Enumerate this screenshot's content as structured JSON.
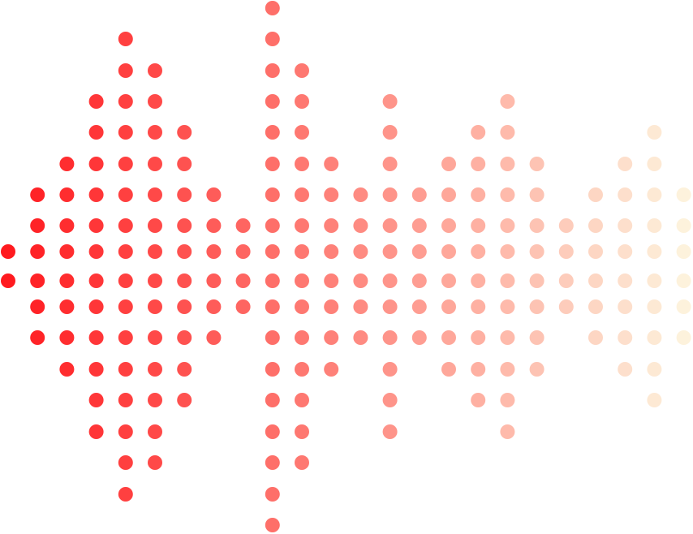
{
  "graphic": {
    "type": "dot-matrix sound wave",
    "colors": {
      "start": "#ff1a1f",
      "end": "#fdf2dc",
      "background": "#ffffff"
    },
    "row_count": 18,
    "column_dot_counts": [
      2,
      6,
      8,
      12,
      16,
      14,
      10,
      6,
      4,
      18,
      14,
      8,
      6,
      12,
      6,
      8,
      10,
      12,
      8,
      4,
      6,
      8,
      10,
      6
    ]
  }
}
